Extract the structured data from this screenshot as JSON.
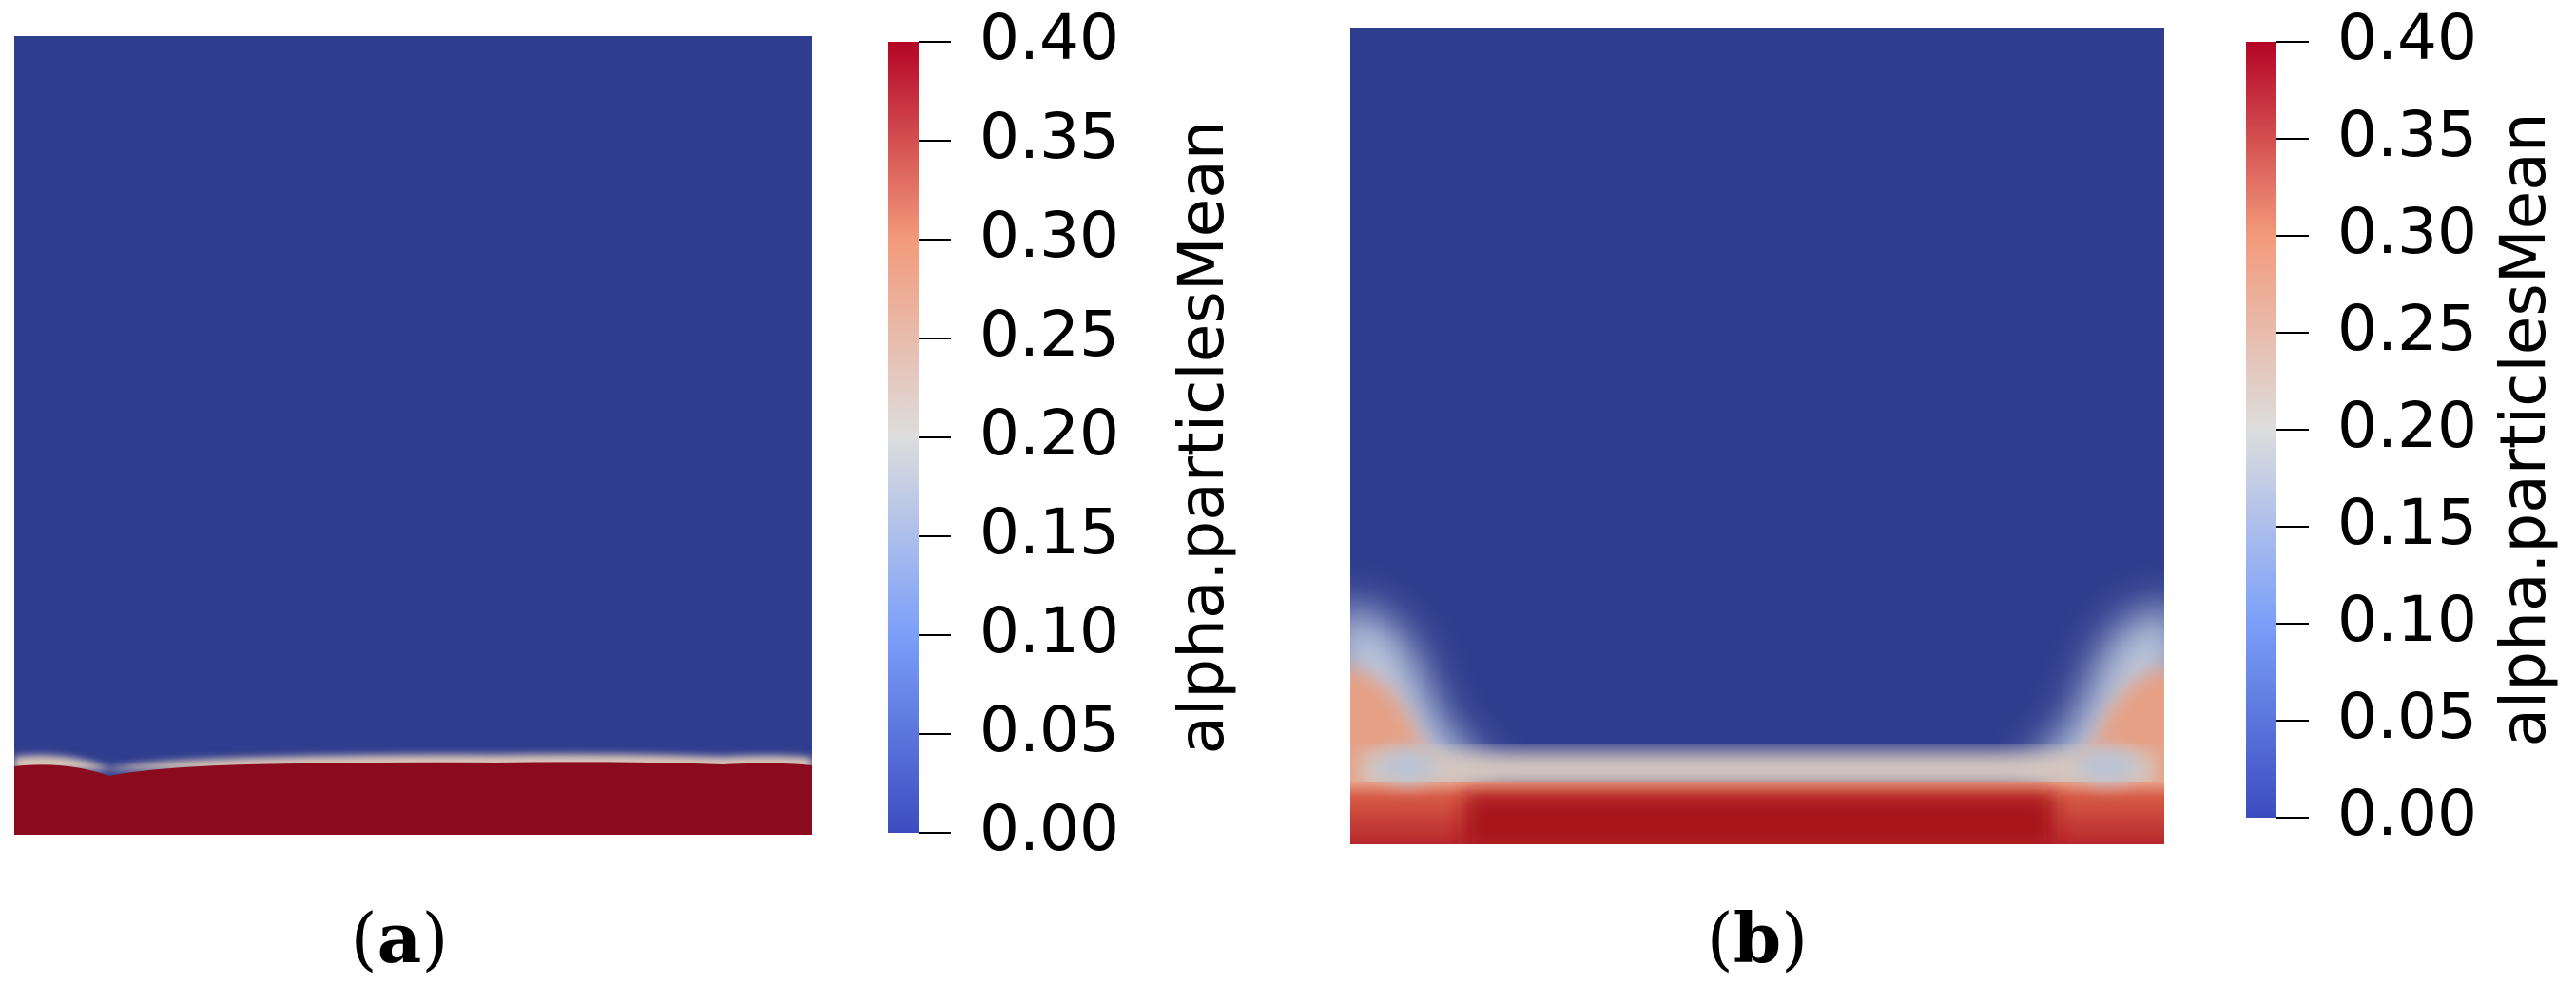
{
  "colormap": {
    "low": "#3b4cc0",
    "mid": "#dddddd",
    "high": "#b40426",
    "background": "#2f3d8e",
    "deep_red": "#8b0a1e"
  },
  "panels": [
    {
      "caption_open": "(",
      "caption_letter": "a",
      "caption_close": ")",
      "colorbar_title": "alpha.particlesMean",
      "colorbar_range": [
        0.0,
        0.4
      ],
      "colorbar_ticks": [
        "0.40",
        "0.35",
        "0.30",
        "0.25",
        "0.20",
        "0.15",
        "0.10",
        "0.05",
        "0.00"
      ]
    },
    {
      "caption_open": "(",
      "caption_letter": "b",
      "caption_close": ")",
      "colorbar_title": "alpha.particlesMean",
      "colorbar_range": [
        0.0,
        0.4
      ],
      "colorbar_ticks": [
        "0.40",
        "0.35",
        "0.30",
        "0.25",
        "0.20",
        "0.15",
        "0.10",
        "0.05",
        "0.00"
      ]
    }
  ]
}
